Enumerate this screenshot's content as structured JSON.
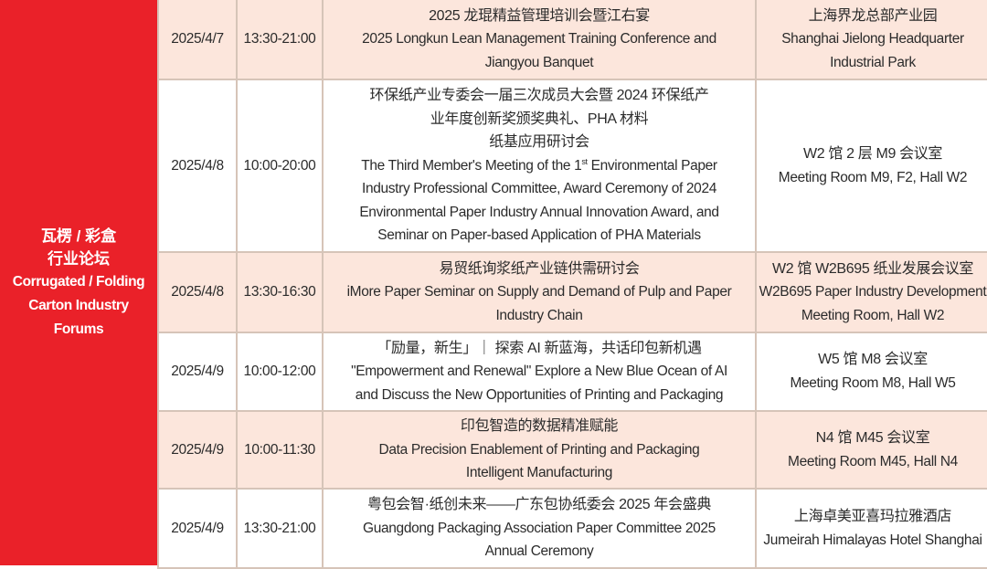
{
  "category": {
    "zh_line1": "瓦楞 / 彩盒",
    "zh_line2": "行业论坛",
    "en_line1": "Corrugated / Folding",
    "en_line2": "Carton Industry",
    "en_line3": "Forums"
  },
  "colors": {
    "accent_red": "#ea2129",
    "row_pink": "#fce6dc",
    "border": "#d6c4b8"
  },
  "rows": [
    {
      "date": "2025/4/7",
      "time": "13:30-21:00",
      "event_zh": [
        "2025 龙琨精益管理培训会暨江右宴"
      ],
      "event_en": [
        "2025 Longkun Lean Management Training Conference and",
        "Jiangyou Banquet"
      ],
      "venue_zh": "上海界龙总部产业园",
      "venue_en": [
        "Shanghai Jielong Headquarter",
        "Industrial Park"
      ]
    },
    {
      "date": "2025/4/8",
      "time": "10:00-20:00",
      "event_zh": [
        "环保纸产业专委会一届三次成员大会暨 2024 环保纸产",
        "业年度创新奖颁奖典礼、PHA 材料",
        "纸基应用研讨会"
      ],
      "event_en_pre": "The Third Member's Meeting of the 1",
      "event_en_sup": "st",
      "event_en_post": " Environmental Paper",
      "event_en": [
        "Industry Professional Committee, Award Ceremony of 2024",
        "Environmental Paper Industry Annual Innovation Award, and",
        "Seminar on Paper-based Application of PHA Materials"
      ],
      "venue_zh": "W2 馆 2 层 M9 会议室",
      "venue_en": [
        "Meeting Room M9, F2, Hall W2"
      ]
    },
    {
      "date": "2025/4/8",
      "time": "13:30-16:30",
      "event_zh": [
        "易贸纸询浆纸产业链供需研讨会"
      ],
      "event_en": [
        "iMore Paper Seminar on Supply and Demand of Pulp and Paper",
        "Industry Chain"
      ],
      "venue_zh": "W2 馆 W2B695 纸业发展会议室",
      "venue_en": [
        "W2B695 Paper Industry Development",
        "Meeting Room, Hall W2"
      ]
    },
    {
      "date": "2025/4/9",
      "time": "10:00-12:00",
      "event_zh": [
        "「励量，新生」｜  探索 AI 新蓝海，共话印包新机遇"
      ],
      "event_en": [
        "\"Empowerment and Renewal\" Explore a New Blue Ocean of AI",
        "and Discuss the New Opportunities of Printing and Packaging"
      ],
      "venue_zh": "W5 馆 M8 会议室",
      "venue_en": [
        "Meeting Room M8, Hall W5"
      ]
    },
    {
      "date": "2025/4/9",
      "time": "10:00-11:30",
      "event_zh": [
        "印包智造的数据精准赋能"
      ],
      "event_en": [
        "Data Precision Enablement of Printing and Packaging",
        "Intelligent Manufacturing"
      ],
      "venue_zh": "N4 馆 M45 会议室",
      "venue_en": [
        "Meeting Room M45, Hall N4"
      ]
    },
    {
      "date": "2025/4/9",
      "time": "13:30-21:00",
      "event_zh": [
        "粤包会智·纸创未来——广东包协纸委会 2025 年会盛典"
      ],
      "event_en": [
        "Guangdong Packaging Association Paper Committee 2025",
        "Annual Ceremony"
      ],
      "venue_zh": "上海卓美亚喜玛拉雅酒店",
      "venue_en": [
        "Jumeirah Himalayas Hotel Shanghai"
      ]
    }
  ]
}
